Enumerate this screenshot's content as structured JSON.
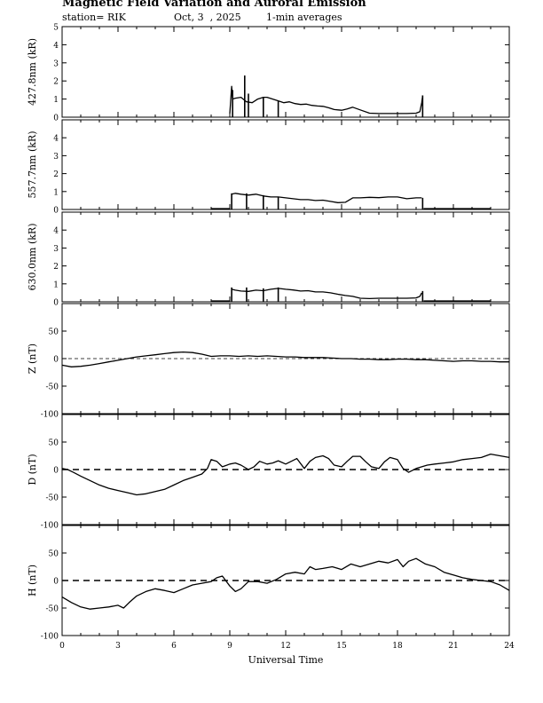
{
  "header": {
    "title": "Magnetic Field Variation and Auroral Emission",
    "station": "station= RIK",
    "date": "Oct, 3  , 2025",
    "averaging": "1-min averages"
  },
  "chart_data": {
    "type": "line",
    "x_label": "Universal Time",
    "x_range": [
      0,
      24
    ],
    "x_ticks": [
      0,
      3,
      6,
      9,
      12,
      15,
      18,
      21,
      24
    ],
    "x_tick_labels": [
      "0",
      "3",
      "6",
      "9",
      "12",
      "15",
      "18",
      "21",
      "24"
    ],
    "panels": [
      {
        "id": "p4278",
        "ylabel": "427.8nm (kR)",
        "ylim": [
          0,
          5
        ],
        "yticks": [
          0,
          1,
          2,
          3,
          4,
          5
        ],
        "ytick_labels": [
          "0",
          "1",
          "2",
          "3",
          "4",
          "5"
        ],
        "zero_line": "none",
        "segments": [
          {
            "x": [
              9.0,
              9.1,
              9.15,
              9.3,
              9.6,
              9.9,
              10.2,
              10.5,
              10.8,
              11.0,
              11.3,
              11.6,
              11.9,
              12.2,
              12.5,
              12.8,
              13.1,
              13.4,
              13.7,
              14.0,
              14.3,
              14.6,
              15.0,
              15.3,
              15.6,
              16.0,
              16.5,
              17.0,
              17.5,
              18.0,
              18.5,
              19.0,
              19.2,
              19.3,
              19.35
            ],
            "y": [
              0.2,
              1.7,
              1.0,
              1.05,
              1.1,
              0.85,
              0.8,
              1.0,
              1.1,
              1.1,
              1.0,
              0.9,
              0.8,
              0.85,
              0.75,
              0.7,
              0.72,
              0.65,
              0.62,
              0.6,
              0.52,
              0.42,
              0.38,
              0.45,
              0.55,
              0.4,
              0.22,
              0.2,
              0.2,
              0.2,
              0.2,
              0.22,
              0.3,
              0.8,
              1.2
            ]
          }
        ],
        "spikes": [
          [
            9.15,
            1.5
          ],
          [
            9.8,
            2.3
          ],
          [
            10.0,
            1.3
          ],
          [
            10.8,
            1.1
          ],
          [
            11.6,
            0.9
          ],
          [
            19.35,
            1.2
          ]
        ]
      },
      {
        "id": "p5577",
        "ylabel": "557.7nm (kR)",
        "ylim": [
          0,
          5
        ],
        "yticks": [
          0,
          1,
          2,
          3,
          4
        ],
        "ytick_labels": [
          "0",
          "1",
          "2",
          "3",
          "4"
        ],
        "zero_line": "none",
        "segments": [
          {
            "x": [
              8.0,
              9.0
            ],
            "y": [
              0.05,
              0.05
            ]
          },
          {
            "x": [
              9.1,
              9.3,
              9.6,
              10.0,
              10.4,
              10.8,
              11.2,
              11.6,
              12.0,
              12.4,
              12.8,
              13.2,
              13.6,
              14.0,
              14.4,
              14.8,
              15.2,
              15.6,
              16.0,
              16.5,
              17.0,
              17.5,
              18.0,
              18.5,
              19.0,
              19.3
            ],
            "y": [
              0.85,
              0.9,
              0.85,
              0.8,
              0.85,
              0.75,
              0.7,
              0.7,
              0.65,
              0.6,
              0.55,
              0.55,
              0.5,
              0.52,
              0.45,
              0.38,
              0.4,
              0.65,
              0.65,
              0.68,
              0.66,
              0.7,
              0.7,
              0.6,
              0.65,
              0.65
            ]
          },
          {
            "x": [
              19.4,
              23.0
            ],
            "y": [
              0.05,
              0.05
            ]
          }
        ],
        "spikes": [
          [
            9.1,
            0.9
          ],
          [
            9.9,
            0.9
          ],
          [
            10.8,
            0.8
          ],
          [
            11.6,
            0.7
          ],
          [
            19.35,
            0.65
          ]
        ]
      },
      {
        "id": "p6300",
        "ylabel": "630.0nm (kR)",
        "ylim": [
          0,
          5
        ],
        "yticks": [
          0,
          1,
          2,
          3,
          4
        ],
        "ytick_labels": [
          "0",
          "1",
          "2",
          "3",
          "4"
        ],
        "zero_line": "none",
        "segments": [
          {
            "x": [
              8.0,
              9.0
            ],
            "y": [
              0.05,
              0.05
            ]
          },
          {
            "x": [
              9.1,
              9.3,
              9.6,
              10.0,
              10.4,
              10.8,
              11.2,
              11.6,
              12.0,
              12.4,
              12.8,
              13.2,
              13.6,
              14.0,
              14.4,
              14.8,
              15.2,
              15.6,
              16.0,
              16.5,
              17.0,
              17.5,
              18.0,
              18.5,
              19.0,
              19.2,
              19.3
            ],
            "y": [
              0.7,
              0.65,
              0.6,
              0.58,
              0.65,
              0.62,
              0.7,
              0.75,
              0.7,
              0.66,
              0.6,
              0.62,
              0.55,
              0.55,
              0.5,
              0.42,
              0.35,
              0.3,
              0.2,
              0.18,
              0.2,
              0.2,
              0.2,
              0.2,
              0.22,
              0.3,
              0.5
            ]
          },
          {
            "x": [
              19.4,
              23.0
            ],
            "y": [
              0.05,
              0.05
            ]
          }
        ],
        "spikes": [
          [
            9.1,
            0.8
          ],
          [
            9.9,
            0.8
          ],
          [
            10.8,
            0.75
          ],
          [
            11.6,
            0.8
          ],
          [
            19.35,
            0.6
          ]
        ]
      },
      {
        "id": "pZ",
        "ylabel": "Z (nT)",
        "ylim": [
          -100,
          100
        ],
        "yticks": [
          -100,
          -50,
          0,
          50
        ],
        "ytick_labels": [
          "-100",
          "-50",
          "0",
          "50"
        ],
        "zero_line": "thin",
        "segments": [
          {
            "x": [
              0,
              0.5,
              1.0,
              1.5,
              2.0,
              2.5,
              3.0,
              3.5,
              4.0,
              4.5,
              5.0,
              5.5,
              6.0,
              6.5,
              7.0,
              7.5,
              8.0,
              8.5,
              9.0,
              9.5,
              10.0,
              10.5,
              11.0,
              11.5,
              12.0,
              12.5,
              13.0,
              13.5,
              14.0,
              14.5,
              15.0,
              15.5,
              16.0,
              16.5,
              17.0,
              17.5,
              18.0,
              18.5,
              19.0,
              19.5,
              20.0,
              20.5,
              21.0,
              21.5,
              22.0,
              22.5,
              23.0,
              23.5,
              24.0
            ],
            "y": [
              -12,
              -15,
              -14,
              -12,
              -9,
              -6,
              -3,
              0,
              3,
              5,
              7,
              9,
              11,
              12,
              11,
              8,
              4,
              5,
              5,
              4,
              5,
              4,
              5,
              4,
              3,
              3,
              2,
              2,
              2,
              1,
              0,
              0,
              -1,
              -1,
              -2,
              -2,
              -1,
              -1,
              -2,
              -2,
              -3,
              -4,
              -5,
              -4,
              -4,
              -5,
              -5,
              -6,
              -6
            ]
          }
        ],
        "spikes": []
      },
      {
        "id": "pD",
        "ylabel": "D (nT)",
        "ylim": [
          -100,
          100
        ],
        "yticks": [
          -100,
          -50,
          0,
          50
        ],
        "ytick_labels": [
          "-100",
          "-50",
          "0",
          "50"
        ],
        "zero_line": "dashed",
        "segments": [
          {
            "x": [
              0,
              0.3,
              0.6,
              1.0,
              1.5,
              2.0,
              2.5,
              3.0,
              3.5,
              4.0,
              4.5,
              5.0,
              5.5,
              6.0,
              6.5,
              7.0,
              7.5,
              7.8,
              8.0,
              8.3,
              8.6,
              9.0,
              9.3,
              9.6,
              10.0,
              10.3,
              10.6,
              11.0,
              11.3,
              11.6,
              12.0,
              12.3,
              12.6,
              13.0,
              13.3,
              13.6,
              14.0,
              14.3,
              14.6,
              15.0,
              15.3,
              15.6,
              16.0,
              16.3,
              16.6,
              17.0,
              17.3,
              17.6,
              18.0,
              18.3,
              18.6,
              19.0,
              19.3,
              19.6,
              20.0,
              20.5,
              21.0,
              21.5,
              22.0,
              22.5,
              23.0,
              23.5,
              24.0
            ],
            "y": [
              2,
              0,
              -5,
              -12,
              -20,
              -28,
              -34,
              -38,
              -42,
              -46,
              -44,
              -40,
              -36,
              -28,
              -20,
              -14,
              -8,
              2,
              18,
              15,
              5,
              10,
              12,
              8,
              0,
              5,
              15,
              10,
              12,
              16,
              10,
              15,
              20,
              2,
              15,
              22,
              25,
              20,
              8,
              5,
              15,
              24,
              24,
              14,
              5,
              2,
              14,
              22,
              18,
              2,
              -5,
              2,
              5,
              8,
              10,
              12,
              14,
              18,
              20,
              22,
              28,
              25,
              22
            ]
          }
        ],
        "spikes": []
      },
      {
        "id": "pH",
        "ylabel": "H (nT)",
        "ylim": [
          -100,
          100
        ],
        "yticks": [
          -100,
          -50,
          0,
          50
        ],
        "ytick_labels": [
          "-100",
          "-50",
          "0",
          "50"
        ],
        "zero_line": "dashed",
        "segments": [
          {
            "x": [
              0,
              0.5,
              1.0,
              1.5,
              2.0,
              2.5,
              3.0,
              3.3,
              3.6,
              4.0,
              4.5,
              5.0,
              5.5,
              6.0,
              6.5,
              7.0,
              7.5,
              8.0,
              8.3,
              8.6,
              9.0,
              9.3,
              9.6,
              10.0,
              10.5,
              11.0,
              11.5,
              12.0,
              12.5,
              13.0,
              13.3,
              13.6,
              14.0,
              14.5,
              15.0,
              15.5,
              16.0,
              16.5,
              17.0,
              17.5,
              18.0,
              18.3,
              18.6,
              19.0,
              19.5,
              20.0,
              20.5,
              21.0,
              21.5,
              22.0,
              22.5,
              23.0,
              23.5,
              24.0
            ],
            "y": [
              -30,
              -40,
              -48,
              -52,
              -50,
              -48,
              -45,
              -50,
              -40,
              -28,
              -20,
              -15,
              -18,
              -22,
              -15,
              -8,
              -5,
              -2,
              5,
              8,
              -10,
              -20,
              -15,
              -2,
              -2,
              -5,
              2,
              12,
              15,
              12,
              25,
              20,
              22,
              25,
              20,
              30,
              25,
              30,
              35,
              32,
              38,
              25,
              35,
              40,
              30,
              25,
              15,
              10,
              5,
              2,
              0,
              -2,
              -8,
              -18
            ]
          }
        ],
        "spikes": []
      }
    ]
  }
}
